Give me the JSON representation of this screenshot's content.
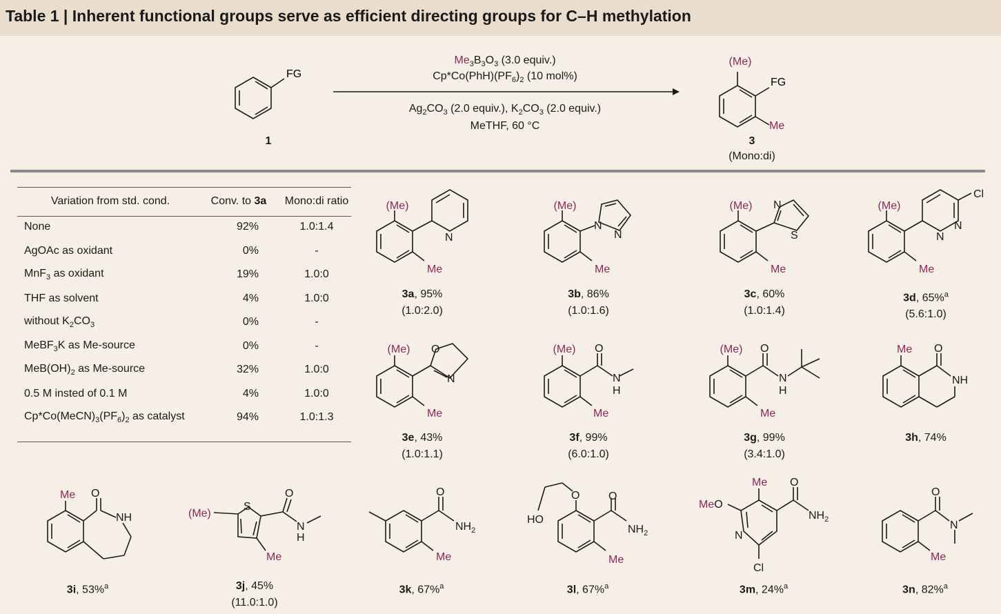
{
  "title": "Table 1 | Inherent functional groups serve as efficient directing groups for C–H methylation",
  "scheme": {
    "substrate_fg": "FG",
    "substrate_label": "1",
    "product_me_top": "(Me)",
    "product_fg": "FG",
    "product_me": "Me",
    "product_label": "3",
    "product_ratio": "(Mono:di)",
    "cond1": "Me3B3O3 (3.0 equiv.)",
    "cond2": "Cp*Co(PhH)(PF6)2 (10 mol%)",
    "cond3": "Ag2CO3 (2.0 equiv.), K2CO3 (2.0 equiv.)",
    "cond4": "MeTHF, 60 °C"
  },
  "table": {
    "headers": [
      "Variation from std. cond.",
      "Conv. to 3a",
      "Mono:di ratio"
    ],
    "rows": [
      [
        "None",
        "92%",
        "1.0:1.4"
      ],
      [
        "AgOAc as oxidant",
        "0%",
        "-"
      ],
      [
        "MnF3 as oxidant",
        "19%",
        "1.0:0"
      ],
      [
        "THF as solvent",
        "4%",
        "1.0:0"
      ],
      [
        "without K2CO3",
        "0%",
        "-"
      ],
      [
        "MeBF3K as Me-source",
        "0%",
        "-"
      ],
      [
        "MeB(OH)2 as Me-source",
        "32%",
        "1.0:0"
      ],
      [
        "0.5 M insted of 0.1 M",
        "4%",
        "1.0:0"
      ],
      [
        "Cp*Co(MeCN)3(PF6)2 as catalyst",
        "94%",
        "1.0:1.3"
      ]
    ]
  },
  "products": [
    {
      "id": "3a",
      "yield": ", 95%",
      "ratio": "(1.0:2.0)"
    },
    {
      "id": "3b",
      "yield": ", 86%",
      "ratio": "(1.0:1.6)"
    },
    {
      "id": "3c",
      "yield": ", 60%",
      "ratio": "(1.0:1.4)"
    },
    {
      "id": "3d",
      "yield": ", 65%",
      "sup": "a",
      "ratio": "(5.6:1.0)"
    },
    {
      "id": "3e",
      "yield": ", 43%",
      "ratio": "(1.0:1.1)"
    },
    {
      "id": "3f",
      "yield": ", 99%",
      "ratio": "(6.0:1.0)"
    },
    {
      "id": "3g",
      "yield": ", 99%",
      "ratio": "(3.4:1.0)"
    },
    {
      "id": "3h",
      "yield": ", 74%"
    },
    {
      "id": "3i",
      "yield": ", 53%",
      "sup": "a"
    },
    {
      "id": "3j",
      "yield": ", 45%",
      "ratio": "(11.0:1.0)"
    },
    {
      "id": "3k",
      "yield": ", 67%",
      "sup": "a"
    },
    {
      "id": "3l",
      "yield": ", 67%",
      "sup": "a"
    },
    {
      "id": "3m",
      "yield": ", 24%",
      "sup": "a"
    },
    {
      "id": "3n",
      "yield": ", 82%",
      "sup": "a"
    }
  ],
  "atoms": {
    "me_paren": "(Me)",
    "me": "Me",
    "n": "N",
    "s": "S",
    "o": "O",
    "cl": "Cl",
    "h": "H",
    "nh": "NH",
    "nh2": "NH2",
    "ho": "HO",
    "meo": "MeO"
  },
  "colors": {
    "title_bg": "#e9ddcd",
    "page_bg": "#f6efe6",
    "methyl": "#8b2757"
  }
}
